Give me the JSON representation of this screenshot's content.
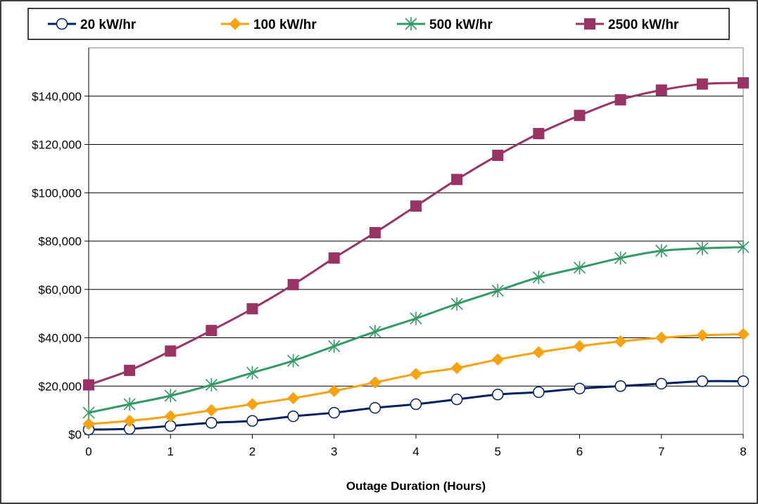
{
  "chart_data": {
    "type": "line",
    "title": "",
    "xlabel": "Outage Duration (Hours)",
    "ylabel": "",
    "x": [
      0,
      0.5,
      1,
      1.5,
      2,
      2.5,
      3,
      3.5,
      4,
      4.5,
      5,
      5.5,
      6,
      6.5,
      7,
      7.5,
      8
    ],
    "xticks": [
      0,
      1,
      2,
      3,
      4,
      5,
      6,
      7,
      8
    ],
    "xlim": [
      0,
      8
    ],
    "ylim": [
      0,
      160000
    ],
    "yticks": [
      0,
      20000,
      40000,
      60000,
      80000,
      100000,
      120000,
      140000
    ],
    "ytick_labels": [
      "$0",
      "$20,000",
      "$40,000",
      "$60,000",
      "$80,000",
      "$100,000",
      "$120,000",
      "$140,000"
    ],
    "grid": "horizontal",
    "legend_position": "top",
    "series": [
      {
        "name": "20 kW/hr",
        "color": "#002060",
        "marker": "open-circle",
        "values": [
          2000,
          2300,
          3500,
          4800,
          5600,
          7500,
          9000,
          11000,
          12500,
          14500,
          16500,
          17500,
          19000,
          20000,
          21000,
          22000,
          22000
        ]
      },
      {
        "name": "100 kW/hr",
        "color": "#F7A20F",
        "marker": "diamond",
        "values": [
          4300,
          5600,
          7500,
          10000,
          12500,
          15000,
          18000,
          21500,
          25000,
          27500,
          31000,
          34000,
          36500,
          38500,
          40000,
          41000,
          41500
        ]
      },
      {
        "name": "500 kW/hr",
        "color": "#339966",
        "marker": "star",
        "values": [
          9000,
          12500,
          16000,
          20500,
          25500,
          30500,
          36500,
          42500,
          48000,
          54000,
          59500,
          65000,
          69000,
          73000,
          76000,
          77000,
          77500
        ]
      },
      {
        "name": "2500 kW/hr",
        "color": "#993366",
        "marker": "square",
        "values": [
          20500,
          26500,
          34500,
          43000,
          52000,
          62000,
          73000,
          83500,
          94500,
          105500,
          115500,
          124500,
          132000,
          138500,
          142500,
          145000,
          145500
        ]
      }
    ]
  }
}
